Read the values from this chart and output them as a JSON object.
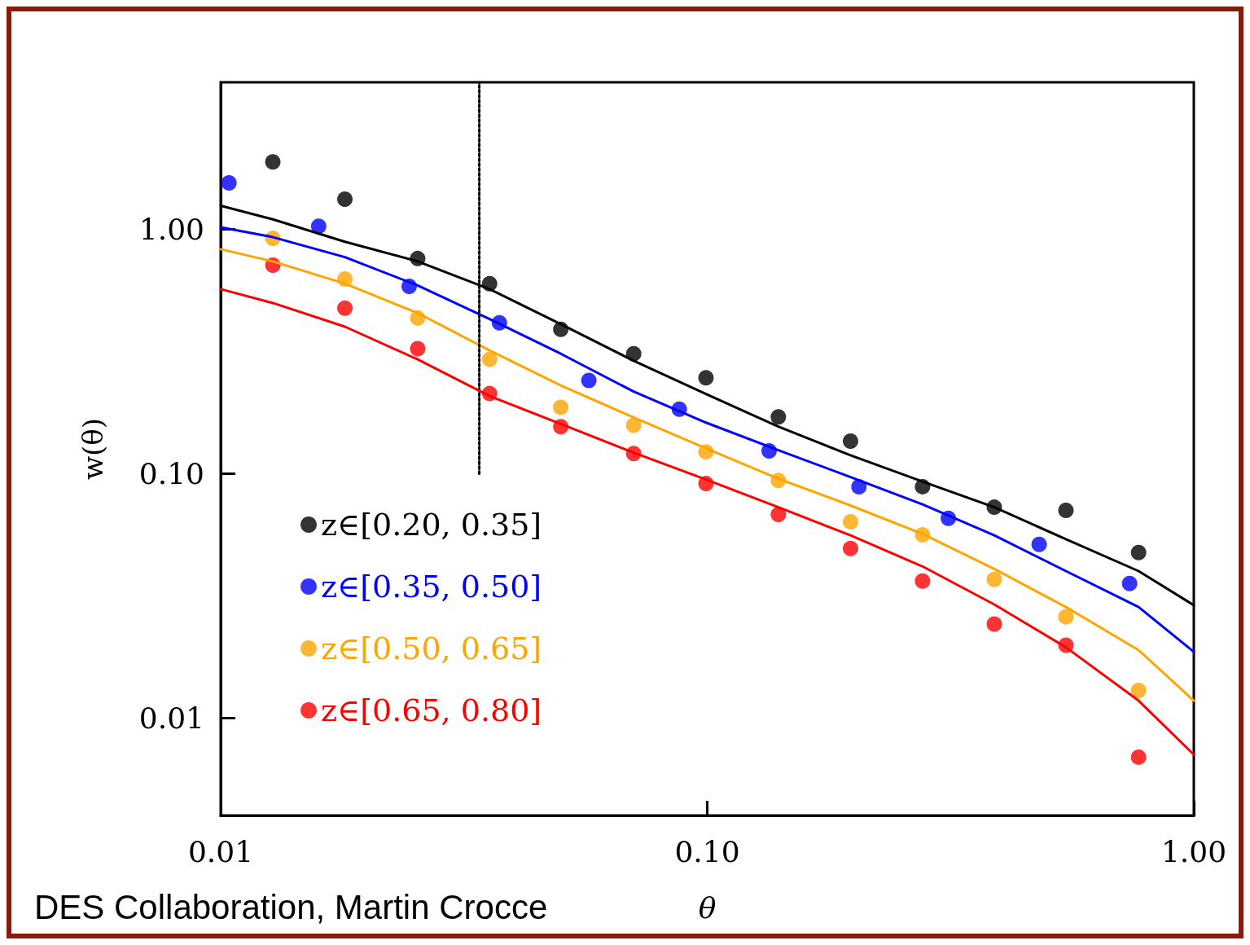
{
  "chart_data": {
    "type": "scatter",
    "xlabel": "θ",
    "ylabel": "w(θ)",
    "log": "xy",
    "xlim": [
      0.01,
      1
    ],
    "ylim": [
      0.004,
      4
    ],
    "xticks": [
      0.01,
      {
        "value": 0.1,
        "label": "0.10"
      },
      {
        "value": 1,
        "label": "1.00"
      }
    ],
    "yticks": [
      0.01,
      {
        "value": 0.1,
        "label": "0.10"
      },
      {
        "value": 1,
        "label": "1.00"
      }
    ],
    "grid": false,
    "legend": "bottom left",
    "marker": "circle",
    "annotations": [
      "DES Collaboration, Martin Crocce"
    ],
    "series": [
      {
        "type": "scatter",
        "name": "z∈[0.20, 0.35]",
        "color": "#000000",
        "x": [
          0.0128,
          0.018,
          0.0254,
          0.0357,
          0.05,
          0.0706,
          0.0994,
          0.14,
          0.197,
          0.277,
          0.389,
          0.546,
          0.77
        ],
        "values": [
          1.89,
          1.33,
          0.76,
          0.6,
          0.39,
          0.31,
          0.247,
          0.171,
          0.136,
          0.0886,
          0.073,
          0.0709,
          0.0476
        ]
      },
      {
        "type": "scatter",
        "name": "z∈[0.35, 0.50]",
        "color": "#0000ff",
        "x": [
          0.0104,
          0.0159,
          0.0244,
          0.0374,
          0.0571,
          0.0876,
          0.134,
          0.205,
          0.313,
          0.481,
          0.738
        ],
        "values": [
          1.55,
          1.03,
          0.585,
          0.415,
          0.241,
          0.184,
          0.124,
          0.0885,
          0.0657,
          0.0514,
          0.0356
        ]
      },
      {
        "type": "scatter",
        "name": "z∈[0.50, 0.65]",
        "color": "#ffa500",
        "x": [
          0.0128,
          0.018,
          0.0254,
          0.0357,
          0.05,
          0.0706,
          0.0994,
          0.14,
          0.197,
          0.277,
          0.389,
          0.546,
          0.77
        ],
        "values": [
          0.919,
          0.627,
          0.434,
          0.294,
          0.187,
          0.158,
          0.123,
          0.094,
          0.0637,
          0.0563,
          0.037,
          0.026,
          0.013
        ]
      },
      {
        "type": "scatter",
        "name": "z∈[0.65, 0.80]",
        "color": "#ff0000",
        "x": [
          0.0128,
          0.018,
          0.0254,
          0.0357,
          0.05,
          0.0706,
          0.0994,
          0.14,
          0.197,
          0.277,
          0.389,
          0.546,
          0.77
        ],
        "values": [
          0.714,
          0.476,
          0.325,
          0.213,
          0.156,
          0.121,
          0.0912,
          0.0682,
          0.0495,
          0.0364,
          0.0243,
          0.0199,
          0.00693
        ]
      },
      {
        "type": "line",
        "marker": "none",
        "color": "#000000",
        "x": [
          0.01,
          0.0128,
          0.018,
          0.0254,
          0.0357,
          0.05,
          0.0706,
          0.0994,
          0.14,
          0.197,
          0.277,
          0.389,
          0.546,
          0.77,
          1
        ],
        "values": [
          1.25,
          1.1,
          0.89,
          0.74,
          0.57,
          0.41,
          0.29,
          0.212,
          0.156,
          0.119,
          0.093,
          0.073,
          0.054,
          0.04,
          0.029
        ]
      },
      {
        "type": "line",
        "marker": "none",
        "color": "#0000ff",
        "x": [
          0.01,
          0.0128,
          0.018,
          0.0254,
          0.0357,
          0.05,
          0.0706,
          0.0994,
          0.14,
          0.197,
          0.277,
          0.389,
          0.546,
          0.77,
          1
        ],
        "values": [
          1.02,
          0.93,
          0.77,
          0.59,
          0.43,
          0.31,
          0.217,
          0.162,
          0.125,
          0.097,
          0.075,
          0.056,
          0.04,
          0.0285,
          0.0187
        ]
      },
      {
        "type": "line",
        "marker": "none",
        "color": "#ffa500",
        "x": [
          0.01,
          0.0128,
          0.018,
          0.0254,
          0.0357,
          0.05,
          0.0706,
          0.0994,
          0.14,
          0.197,
          0.277,
          0.389,
          0.546,
          0.77,
          1
        ],
        "values": [
          0.83,
          0.74,
          0.6,
          0.455,
          0.32,
          0.23,
          0.17,
          0.127,
          0.0955,
          0.0742,
          0.0568,
          0.0408,
          0.0285,
          0.019,
          0.0118
        ]
      },
      {
        "type": "line",
        "marker": "none",
        "line_style": "dotted",
        "color": "#000000",
        "x": [
          0.034,
          0.034
        ],
        "values": [
          0.1,
          4
        ]
      },
      {
        "type": "line",
        "marker": "none",
        "color": "#ff0000",
        "x": [
          0.01,
          0.0128,
          0.018,
          0.0254,
          0.0357,
          0.05,
          0.0706,
          0.0994,
          0.14,
          0.197,
          0.277,
          0.389,
          0.546,
          0.77,
          1
        ],
        "values": [
          0.57,
          0.5,
          0.4,
          0.294,
          0.208,
          0.16,
          0.122,
          0.0948,
          0.073,
          0.056,
          0.0418,
          0.0292,
          0.0195,
          0.0118,
          0.0071
        ]
      }
    ]
  }
}
